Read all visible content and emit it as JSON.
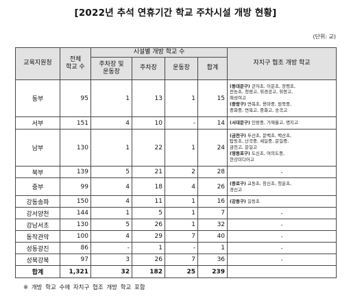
{
  "title": "[2022년 추석 연휴기간 학교 주차시설 개방 현황]",
  "unit": "(단위: 교)",
  "headers": {
    "office": "교육지원청",
    "total_line1": "전체",
    "total_line2": "학교 수",
    "group": "시설별 개방 학교 수",
    "both_line1": "주차장 및",
    "both_line2": "운동장",
    "parking": "주차장",
    "field": "운동장",
    "sum": "합계",
    "coop": "자치구 협조 개방 학교"
  },
  "rows": [
    {
      "office": "동부",
      "total": "95",
      "both": "1",
      "parking": "13",
      "field": "1",
      "sum": "15",
      "notes": [
        {
          "tag": "(동대문구)",
          "text": " 군자초, 이문초, 장평초,"
        },
        {
          "tag": "",
          "text": "전농초, 청량고, 휘경공고, 휘봉고,"
        },
        {
          "tag": "",
          "text": "해성여고"
        },
        {
          "tag": "(중랑구)",
          "text": " 면목초, 용마중, 원묵중,"
        },
        {
          "tag": "",
          "text": "중화중, 면목고, 중화고, 송곡고"
        }
      ]
    },
    {
      "office": "서부",
      "total": "151",
      "both": "4",
      "parking": "10",
      "field": "-",
      "sum": "14",
      "notes": [
        {
          "tag": "(서대문구)",
          "text": " 인왕중, 가재울고, 명지고"
        }
      ]
    },
    {
      "office": "남부",
      "total": "130",
      "both": "1",
      "parking": "22",
      "field": "1",
      "sum": "24",
      "notes": [
        {
          "tag": "(금천구)",
          "text": " 두산초, 문백초, 백산초,"
        },
        {
          "tag": "",
          "text": "탑동초, 난곡중, 세일중, 문일중,"
        },
        {
          "tag": "",
          "text": "금천고, 문일고"
        },
        {
          "tag": "(영등포구)",
          "text": " 도신초, 여의도중,"
        },
        {
          "tag": "",
          "text": "한강미디어고"
        }
      ]
    },
    {
      "office": "북부",
      "total": "139",
      "both": "5",
      "parking": "21",
      "field": "2",
      "sum": "28",
      "notes": [
        {
          "tag": "",
          "text": "-"
        }
      ]
    },
    {
      "office": "중부",
      "total": "99",
      "both": "4",
      "parking": "18",
      "field": "4",
      "sum": "26",
      "notes": [
        {
          "tag": "(종로구)",
          "text": " 교동초, 창신초, 청운초,"
        },
        {
          "tag": "",
          "text": "경신고"
        }
      ]
    },
    {
      "office": "강동송파",
      "total": "150",
      "both": "4",
      "parking": "11",
      "field": "1",
      "sum": "16",
      "notes": [
        {
          "tag": "(강동구)",
          "text": " 길동초"
        }
      ]
    },
    {
      "office": "강서양천",
      "total": "144",
      "both": "1",
      "parking": "5",
      "field": "1",
      "sum": "7",
      "notes": [
        {
          "tag": "",
          "text": "-"
        }
      ]
    },
    {
      "office": "강남서초",
      "total": "130",
      "both": "5",
      "parking": "26",
      "field": "1",
      "sum": "32",
      "notes": [
        {
          "tag": "",
          "text": "-"
        }
      ]
    },
    {
      "office": "동작관악",
      "total": "100",
      "both": "4",
      "parking": "29",
      "field": "7",
      "sum": "40",
      "notes": [
        {
          "tag": "",
          "text": "-"
        }
      ]
    },
    {
      "office": "성동광진",
      "total": "86",
      "both": "-",
      "parking": "1",
      "field": "-",
      "sum": "1",
      "notes": [
        {
          "tag": "",
          "text": "-"
        }
      ]
    },
    {
      "office": "성북강북",
      "total": "97",
      "both": "3",
      "parking": "26",
      "field": "7",
      "sum": "36",
      "notes": [
        {
          "tag": "",
          "text": "-"
        }
      ]
    }
  ],
  "totals": {
    "label": "합계",
    "total": "1,321",
    "both": "32",
    "parking": "182",
    "field": "25",
    "sum": "239"
  },
  "footnote": "※ 개방 학교 수에 자치구 협조 개방 학교 포함"
}
